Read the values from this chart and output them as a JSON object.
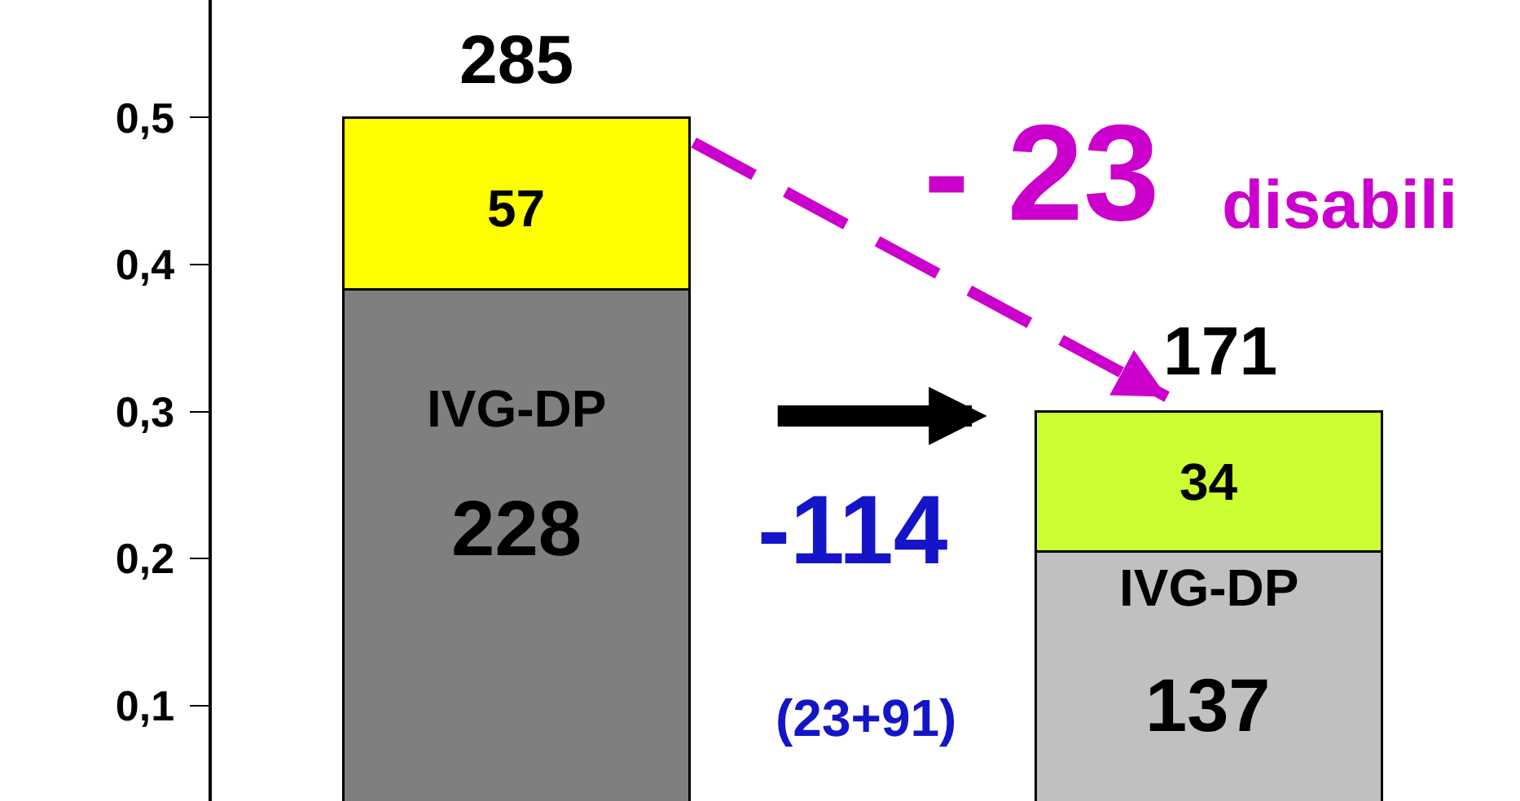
{
  "chart_data": {
    "type": "bar",
    "stacked": true,
    "categories": [
      null,
      null
    ],
    "series": [
      {
        "colors": [
          "#7f7f7f",
          "#c0c0c0"
        ],
        "values": [
          0.383,
          0.205
        ]
      },
      {
        "colors": [
          "#ffff00",
          "#ccff33"
        ],
        "values": [
          0.117,
          0.095
        ]
      }
    ],
    "ylim": [
      0.035,
      0.58
    ],
    "yticks": [
      {
        "value": 0.1,
        "label": "0,1"
      },
      {
        "value": 0.2,
        "label": "0,2"
      },
      {
        "value": 0.3,
        "label": "0,3"
      },
      {
        "value": 0.4,
        "label": "0,4"
      },
      {
        "value": 0.5,
        "label": "0,5"
      }
    ],
    "annotations": [
      "285",
      "57",
      "IVG-DP",
      "228",
      "- 23",
      "disabili",
      "171",
      "34",
      "IVG-DP",
      "137",
      "-114",
      "(23+91)"
    ],
    "grid": false
  }
}
